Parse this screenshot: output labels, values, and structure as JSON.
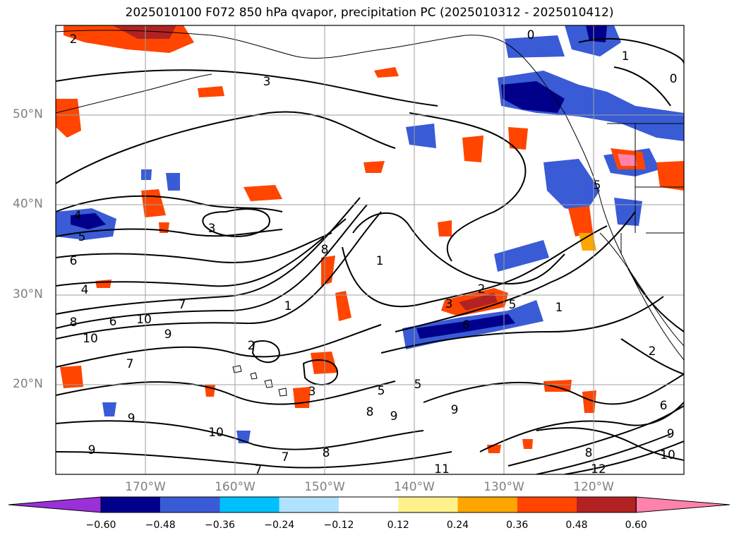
{
  "title": "2025010100 F072 850 hPa qvapor, precipitation PC (2025010312 - 2025010412)",
  "map": {
    "lat_labels": [
      "50°N",
      "40°N",
      "30°N",
      "20°N"
    ],
    "lon_labels": [
      "170°W",
      "160°W",
      "150°W",
      "140°W",
      "130°W",
      "120°W"
    ],
    "contour_labels": [
      "2",
      "3",
      "3",
      "4",
      "5",
      "6",
      "4",
      "8",
      "10",
      "10",
      "9",
      "7",
      "7",
      "8",
      "6",
      "9",
      "10",
      "9",
      "7",
      "8",
      "9",
      "11",
      "8",
      "5",
      "5",
      "2",
      "3",
      "1",
      "1",
      "5",
      "6",
      "2",
      "1",
      "2",
      "9",
      "0",
      "0",
      "1",
      "5",
      "3",
      "6",
      "9",
      "8",
      "10",
      "7",
      "12"
    ],
    "colors": {
      "coast": "#000000",
      "grid": "#9e9e9e",
      "background": "#ffffff"
    }
  },
  "colorbar": {
    "colors": [
      "#9b30d9",
      "#00008b",
      "#3a5bd6",
      "#00bfff",
      "#b0e2ff",
      "#ffffff",
      "#fff08c",
      "#ffa500",
      "#ff4500",
      "#b22222",
      "#ff82ab"
    ],
    "ticks": [
      "−0.60",
      "−0.48",
      "−0.36",
      "−0.24",
      "−0.12",
      "0.12",
      "0.24",
      "0.36",
      "0.48",
      "0.60"
    ]
  }
}
